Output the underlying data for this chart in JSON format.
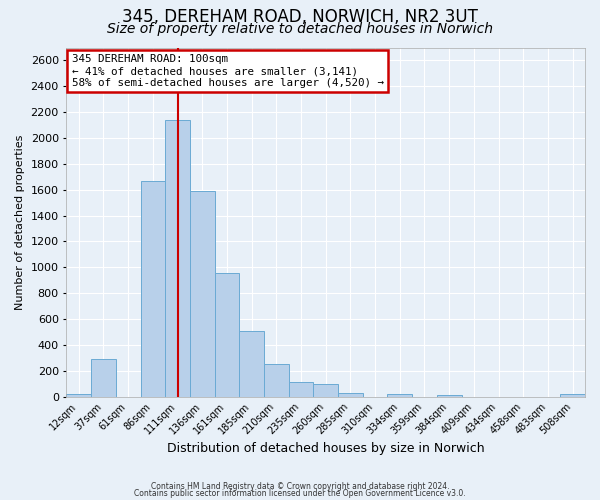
{
  "title": "345, DEREHAM ROAD, NORWICH, NR2 3UT",
  "subtitle": "Size of property relative to detached houses in Norwich",
  "xlabel": "Distribution of detached houses by size in Norwich",
  "ylabel": "Number of detached properties",
  "bin_labels": [
    "12sqm",
    "37sqm",
    "61sqm",
    "86sqm",
    "111sqm",
    "136sqm",
    "161sqm",
    "185sqm",
    "210sqm",
    "235sqm",
    "260sqm",
    "285sqm",
    "310sqm",
    "334sqm",
    "359sqm",
    "384sqm",
    "409sqm",
    "434sqm",
    "458sqm",
    "483sqm",
    "508sqm"
  ],
  "bar_heights": [
    20,
    295,
    0,
    1670,
    2140,
    1590,
    960,
    505,
    250,
    115,
    95,
    30,
    0,
    20,
    0,
    15,
    0,
    0,
    0,
    0,
    20
  ],
  "bar_color": "#b8d0ea",
  "bar_edgecolor": "#6aaad4",
  "vline_bin_index": 4,
  "vline_color": "#cc0000",
  "annotation_title": "345 DEREHAM ROAD: 100sqm",
  "annotation_line1": "← 41% of detached houses are smaller (3,141)",
  "annotation_line2": "58% of semi-detached houses are larger (4,520) →",
  "annotation_box_edgecolor": "#cc0000",
  "annotation_box_facecolor": "#ffffff",
  "ylim": [
    0,
    2700
  ],
  "yticks": [
    0,
    200,
    400,
    600,
    800,
    1000,
    1200,
    1400,
    1600,
    1800,
    2000,
    2200,
    2400,
    2600
  ],
  "footer1": "Contains HM Land Registry data © Crown copyright and database right 2024.",
  "footer2": "Contains public sector information licensed under the Open Government Licence v3.0.",
  "background_color": "#e8f0f8",
  "plot_background": "#e8f0f8",
  "grid_color": "#ffffff",
  "title_fontsize": 12,
  "subtitle_fontsize": 10
}
